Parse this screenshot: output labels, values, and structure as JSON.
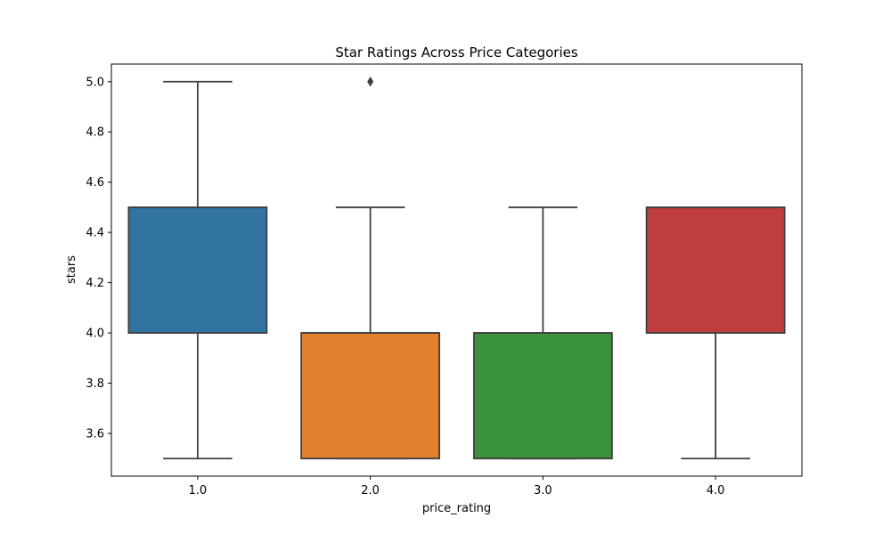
{
  "chart_data": {
    "type": "box",
    "title": "Star Ratings Across Price Categories",
    "xlabel": "price_rating",
    "ylabel": "stars",
    "categories": [
      "1.0",
      "2.0",
      "3.0",
      "4.0"
    ],
    "ylim": [
      3.43,
      5.07
    ],
    "yticks": [
      3.6,
      3.8,
      4.0,
      4.2,
      4.4,
      4.6,
      4.8,
      5.0
    ],
    "ytick_labels": [
      "3.6",
      "3.8",
      "4.0",
      "4.2",
      "4.4",
      "4.6",
      "4.8",
      "5.0"
    ],
    "boxes": [
      {
        "category": "1.0",
        "whisker_low": 3.5,
        "q1": 4.0,
        "median": 4.5,
        "q3": 4.5,
        "whisker_high": 5.0,
        "outliers": [],
        "color": "#3274a1"
      },
      {
        "category": "2.0",
        "whisker_low": 3.5,
        "q1": 3.5,
        "median": 4.0,
        "q3": 4.0,
        "whisker_high": 4.5,
        "outliers": [
          5.0
        ],
        "color": "#e1812c"
      },
      {
        "category": "3.0",
        "whisker_low": 3.5,
        "q1": 3.5,
        "median": 4.0,
        "q3": 4.0,
        "whisker_high": 4.5,
        "outliers": [],
        "color": "#3a923a"
      },
      {
        "category": "4.0",
        "whisker_low": 3.5,
        "q1": 4.0,
        "median": 4.5,
        "q3": 4.5,
        "whisker_high": 4.5,
        "outliers": [],
        "color": "#c03d3e"
      }
    ],
    "line_color": "#3f3f3f",
    "grid": false,
    "legend": "none"
  }
}
